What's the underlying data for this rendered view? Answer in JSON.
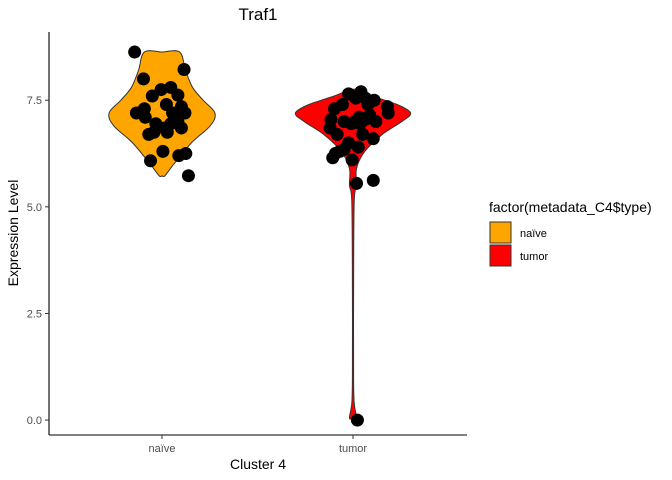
{
  "chart_data": {
    "type": "violin",
    "title": "Traf1",
    "xlabel": "Cluster 4",
    "ylabel": "Expression Level",
    "categories": [
      "naïve",
      "tumor"
    ],
    "ylim": [
      -0.35,
      9.1
    ],
    "yticks": [
      0.0,
      2.5,
      5.0,
      7.5
    ],
    "ytick_labels": [
      "0.0",
      "2.5",
      "5.0",
      "7.5"
    ],
    "grid": false,
    "legend": {
      "title": "factor(metadata_C4$type)",
      "position": "right",
      "entries": [
        {
          "label": "naïve",
          "color": "#FFA500"
        },
        {
          "label": "tumor",
          "color": "#FF0000"
        }
      ]
    },
    "series": [
      {
        "category": "naïve",
        "color": "#FFA500",
        "violin": [
          [
            5.73,
            0.05
          ],
          [
            6.0,
            0.2
          ],
          [
            6.5,
            0.5
          ],
          [
            6.9,
            0.82
          ],
          [
            7.2,
            0.9
          ],
          [
            7.5,
            0.7
          ],
          [
            7.8,
            0.52
          ],
          [
            8.2,
            0.4
          ],
          [
            8.63,
            0.3
          ]
        ],
        "points": [
          [
            -0.31,
            8.63
          ],
          [
            -0.21,
            8.0
          ],
          [
            0.25,
            8.22
          ],
          [
            -0.11,
            7.6
          ],
          [
            -0.01,
            7.75
          ],
          [
            0.1,
            7.8
          ],
          [
            0.18,
            7.62
          ],
          [
            -0.2,
            7.3
          ],
          [
            0.05,
            7.4
          ],
          [
            0.22,
            7.35
          ],
          [
            -0.29,
            7.2
          ],
          [
            -0.19,
            7.1
          ],
          [
            0.12,
            7.2
          ],
          [
            0.26,
            7.2
          ],
          [
            -0.07,
            6.95
          ],
          [
            0.18,
            7.0
          ],
          [
            0.03,
            6.85
          ],
          [
            0.1,
            6.95
          ],
          [
            -0.15,
            6.7
          ],
          [
            0.22,
            6.85
          ],
          [
            -0.09,
            6.75
          ],
          [
            0.06,
            6.75
          ],
          [
            0.01,
            6.3
          ],
          [
            0.19,
            6.2
          ],
          [
            0.27,
            6.25
          ],
          [
            -0.13,
            6.08
          ],
          [
            0.3,
            5.73
          ]
        ]
      },
      {
        "category": "tumor",
        "color": "#FF0000",
        "violin": [
          [
            0.05,
            0.06
          ],
          [
            0.4,
            0.02
          ],
          [
            1.0,
            0.01
          ],
          [
            3.0,
            0.01
          ],
          [
            5.1,
            0.02
          ],
          [
            5.5,
            0.06
          ],
          [
            5.9,
            0.06
          ],
          [
            6.3,
            0.2
          ],
          [
            6.7,
            0.5
          ],
          [
            7.0,
            0.83
          ],
          [
            7.2,
            0.98
          ],
          [
            7.4,
            0.75
          ],
          [
            7.6,
            0.32
          ],
          [
            7.75,
            0.05
          ]
        ],
        "points": [
          [
            -0.21,
            7.3
          ],
          [
            -0.05,
            7.65
          ],
          [
            0.03,
            7.55
          ],
          [
            0.14,
            7.55
          ],
          [
            0.09,
            7.7
          ],
          [
            0.24,
            7.5
          ],
          [
            -0.12,
            7.4
          ],
          [
            0.17,
            7.4
          ],
          [
            0.39,
            7.35
          ],
          [
            0.4,
            7.2
          ],
          [
            -0.25,
            7.05
          ],
          [
            -0.1,
            7.0
          ],
          [
            -0.02,
            6.95
          ],
          [
            0.07,
            7.1
          ],
          [
            0.19,
            7.15
          ],
          [
            0.26,
            7.0
          ],
          [
            -0.26,
            6.85
          ],
          [
            0.02,
            7.0
          ],
          [
            0.08,
            6.95
          ],
          [
            0.14,
            7.05
          ],
          [
            -0.18,
            6.7
          ],
          [
            0.11,
            6.7
          ],
          [
            0.23,
            6.6
          ],
          [
            -0.05,
            6.5
          ],
          [
            0.06,
            6.4
          ],
          [
            -0.2,
            6.25
          ],
          [
            -0.15,
            6.3
          ],
          [
            -0.23,
            6.15
          ],
          [
            -0.1,
            6.35
          ],
          [
            -0.01,
            6.1
          ],
          [
            0.04,
            5.55
          ],
          [
            0.23,
            5.62
          ],
          [
            0.05,
            0.0
          ]
        ]
      }
    ]
  }
}
